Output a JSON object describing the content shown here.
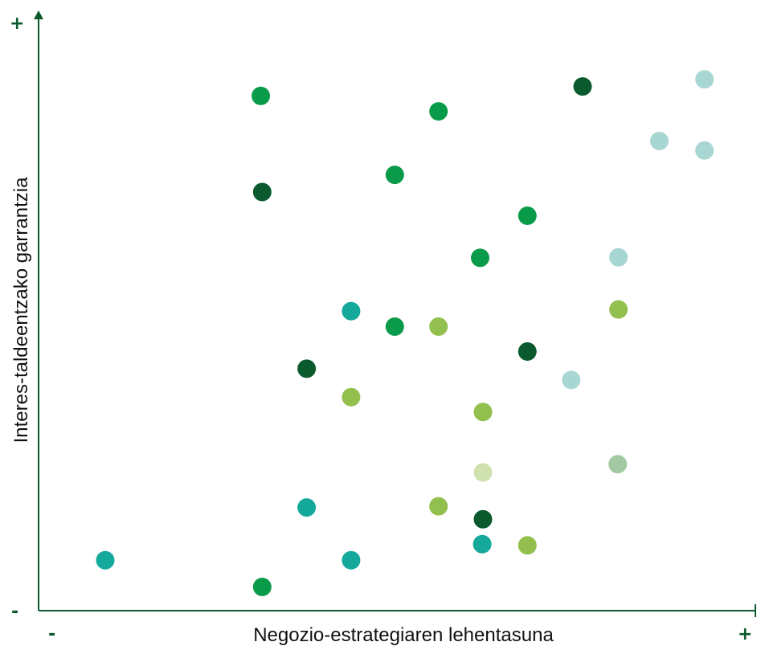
{
  "chart_data": {
    "type": "scatter",
    "title": "",
    "xlabel": "Negozio-estrategiaren lehentasuna",
    "ylabel": "Interes-taldeentzako garrantzia",
    "x_min_label": "-",
    "x_max_label": "+",
    "y_min_label": "-",
    "y_max_label": "+",
    "xlim": [
      0,
      100
    ],
    "ylim": [
      0,
      100
    ],
    "grid": false,
    "legend": "none",
    "colors": {
      "axis": "#0b5a2e",
      "green": "#0a9b4a",
      "dark_green": "#0b5a2e",
      "teal": "#14a99b",
      "lime": "#93bf4f",
      "light_teal": "#a8d6d3",
      "sage": "#a3c9a3",
      "pale_lime": "#cfe2ad"
    },
    "points": [
      {
        "x": 31.0,
        "y": 86.8,
        "color": "green"
      },
      {
        "x": 55.8,
        "y": 84.2,
        "color": "green"
      },
      {
        "x": 75.9,
        "y": 88.4,
        "color": "dark_green"
      },
      {
        "x": 92.9,
        "y": 89.6,
        "color": "light_teal"
      },
      {
        "x": 86.6,
        "y": 79.2,
        "color": "light_teal"
      },
      {
        "x": 92.9,
        "y": 77.6,
        "color": "light_teal"
      },
      {
        "x": 31.2,
        "y": 70.6,
        "color": "dark_green"
      },
      {
        "x": 49.7,
        "y": 73.5,
        "color": "green"
      },
      {
        "x": 68.2,
        "y": 66.6,
        "color": "green"
      },
      {
        "x": 61.6,
        "y": 59.5,
        "color": "green"
      },
      {
        "x": 80.9,
        "y": 59.6,
        "color": "light_teal"
      },
      {
        "x": 43.6,
        "y": 50.5,
        "color": "teal"
      },
      {
        "x": 49.7,
        "y": 47.9,
        "color": "green"
      },
      {
        "x": 55.8,
        "y": 47.9,
        "color": "lime"
      },
      {
        "x": 80.9,
        "y": 50.8,
        "color": "lime"
      },
      {
        "x": 37.4,
        "y": 40.8,
        "color": "dark_green"
      },
      {
        "x": 68.2,
        "y": 43.7,
        "color": "dark_green"
      },
      {
        "x": 74.3,
        "y": 38.9,
        "color": "light_teal"
      },
      {
        "x": 43.6,
        "y": 36.0,
        "color": "lime"
      },
      {
        "x": 62.0,
        "y": 33.5,
        "color": "lime"
      },
      {
        "x": 62.0,
        "y": 23.3,
        "color": "pale_lime"
      },
      {
        "x": 80.8,
        "y": 24.7,
        "color": "sage"
      },
      {
        "x": 37.4,
        "y": 17.4,
        "color": "teal"
      },
      {
        "x": 55.8,
        "y": 17.6,
        "color": "lime"
      },
      {
        "x": 62.0,
        "y": 15.4,
        "color": "dark_green"
      },
      {
        "x": 61.9,
        "y": 11.2,
        "color": "teal"
      },
      {
        "x": 68.2,
        "y": 11.0,
        "color": "lime"
      },
      {
        "x": 9.3,
        "y": 8.5,
        "color": "teal"
      },
      {
        "x": 43.6,
        "y": 8.5,
        "color": "teal"
      },
      {
        "x": 31.2,
        "y": 4.0,
        "color": "green"
      }
    ]
  }
}
